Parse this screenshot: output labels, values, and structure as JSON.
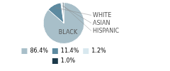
{
  "chart_data": {
    "type": "pie",
    "categories": [
      "BLACK",
      "WHITE",
      "ASIAN",
      "HISPANIC"
    ],
    "values": [
      86.4,
      11.4,
      1.2,
      1.0
    ],
    "value_labels": [
      "86.4%",
      "11.4%",
      "1.2%",
      "1.0%"
    ],
    "colors": [
      "#a8bfc9",
      "#5d8aa0",
      "#d8e8ef",
      "#1c3a4a"
    ],
    "legend": "bottom"
  }
}
